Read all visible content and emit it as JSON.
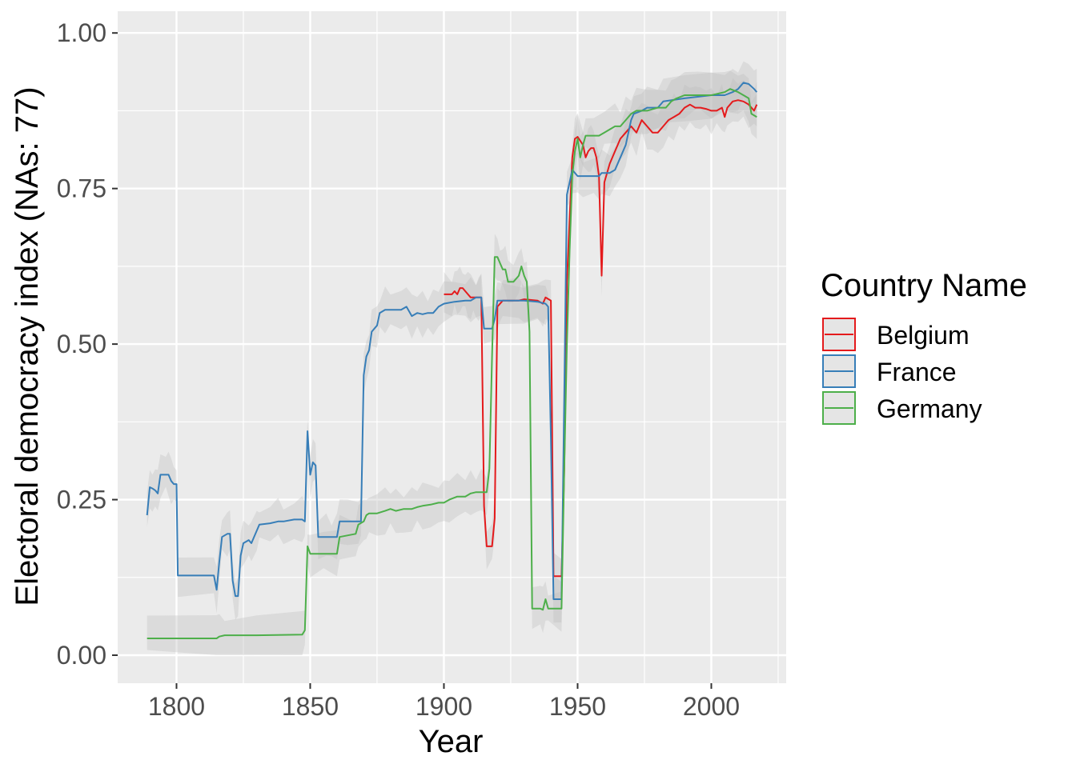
{
  "chart_data": {
    "type": "line",
    "title": "",
    "xlabel": "Year",
    "ylabel": "Electoral democracy index (NAs: 77)",
    "xlim": [
      1778,
      2028
    ],
    "ylim": [
      -0.045,
      1.035
    ],
    "x_ticks": [
      1800,
      1850,
      1900,
      1950,
      2000
    ],
    "x_tick_labels": [
      "1800",
      "1850",
      "1900",
      "1950",
      "2000"
    ],
    "y_ticks": [
      0,
      0.25,
      0.5,
      0.75,
      1
    ],
    "y_tick_labels": [
      "0.00",
      "0.25",
      "0.50",
      "0.75",
      "1.00"
    ],
    "grid": true,
    "confidence_band": true,
    "legend": {
      "title": "Country Name",
      "position": "right"
    },
    "series": [
      {
        "name": "Belgium",
        "color": "#E41A1C",
        "points": [
          [
            1900,
            0.58
          ],
          [
            1903,
            0.58
          ],
          [
            1904,
            0.585
          ],
          [
            1905,
            0.58
          ],
          [
            1906,
            0.59
          ],
          [
            1907,
            0.59
          ],
          [
            1908,
            0.585
          ],
          [
            1909,
            0.58
          ],
          [
            1910,
            0.575
          ],
          [
            1911,
            0.575
          ],
          [
            1912,
            0.575
          ],
          [
            1913,
            0.575
          ],
          [
            1914,
            0.575
          ],
          [
            1915,
            0.24
          ],
          [
            1916,
            0.175
          ],
          [
            1918,
            0.175
          ],
          [
            1919,
            0.22
          ],
          [
            1920,
            0.56
          ],
          [
            1921,
            0.565
          ],
          [
            1922,
            0.57
          ],
          [
            1928,
            0.57
          ],
          [
            1930,
            0.572
          ],
          [
            1935,
            0.57
          ],
          [
            1937,
            0.565
          ],
          [
            1938,
            0.575
          ],
          [
            1940,
            0.57
          ],
          [
            1941,
            0.127
          ],
          [
            1944,
            0.127
          ],
          [
            1945,
            0.3
          ],
          [
            1946,
            0.6
          ],
          [
            1948,
            0.8
          ],
          [
            1949,
            0.83
          ],
          [
            1950,
            0.833
          ],
          [
            1952,
            0.82
          ],
          [
            1953,
            0.8
          ],
          [
            1954,
            0.81
          ],
          [
            1955,
            0.815
          ],
          [
            1956,
            0.815
          ],
          [
            1957,
            0.8
          ],
          [
            1958,
            0.77
          ],
          [
            1959,
            0.61
          ],
          [
            1960,
            0.76
          ],
          [
            1962,
            0.79
          ],
          [
            1964,
            0.81
          ],
          [
            1966,
            0.83
          ],
          [
            1968,
            0.84
          ],
          [
            1970,
            0.85
          ],
          [
            1972,
            0.84
          ],
          [
            1974,
            0.86
          ],
          [
            1976,
            0.85
          ],
          [
            1978,
            0.84
          ],
          [
            1980,
            0.84
          ],
          [
            1982,
            0.85
          ],
          [
            1984,
            0.86
          ],
          [
            1986,
            0.865
          ],
          [
            1988,
            0.87
          ],
          [
            1990,
            0.88
          ],
          [
            1992,
            0.885
          ],
          [
            1994,
            0.88
          ],
          [
            1996,
            0.88
          ],
          [
            1998,
            0.878
          ],
          [
            2000,
            0.875
          ],
          [
            2002,
            0.875
          ],
          [
            2004,
            0.88
          ],
          [
            2005,
            0.865
          ],
          [
            2006,
            0.88
          ],
          [
            2008,
            0.89
          ],
          [
            2010,
            0.892
          ],
          [
            2012,
            0.89
          ],
          [
            2014,
            0.885
          ],
          [
            2016,
            0.875
          ],
          [
            2017,
            0.885
          ]
        ]
      },
      {
        "name": "France",
        "color": "#377EB8",
        "points": [
          [
            1789,
            0.225
          ],
          [
            1790,
            0.27
          ],
          [
            1791,
            0.268
          ],
          [
            1792,
            0.265
          ],
          [
            1793,
            0.26
          ],
          [
            1794,
            0.29
          ],
          [
            1796,
            0.29
          ],
          [
            1797,
            0.29
          ],
          [
            1798,
            0.28
          ],
          [
            1799,
            0.275
          ],
          [
            1800,
            0.275
          ],
          [
            1800.5,
            0.128
          ],
          [
            1814,
            0.128
          ],
          [
            1815,
            0.105
          ],
          [
            1816,
            0.15
          ],
          [
            1817,
            0.19
          ],
          [
            1819,
            0.195
          ],
          [
            1820,
            0.195
          ],
          [
            1821,
            0.12
          ],
          [
            1822,
            0.095
          ],
          [
            1823,
            0.095
          ],
          [
            1824,
            0.16
          ],
          [
            1825,
            0.18
          ],
          [
            1827,
            0.185
          ],
          [
            1828,
            0.18
          ],
          [
            1830,
            0.2
          ],
          [
            1831,
            0.21
          ],
          [
            1835,
            0.212
          ],
          [
            1838,
            0.215
          ],
          [
            1840,
            0.215
          ],
          [
            1844,
            0.218
          ],
          [
            1847,
            0.218
          ],
          [
            1848,
            0.215
          ],
          [
            1849,
            0.36
          ],
          [
            1850,
            0.29
          ],
          [
            1851,
            0.31
          ],
          [
            1852,
            0.305
          ],
          [
            1853,
            0.19
          ],
          [
            1856,
            0.19
          ],
          [
            1858,
            0.19
          ],
          [
            1860,
            0.19
          ],
          [
            1861,
            0.215
          ],
          [
            1864,
            0.215
          ],
          [
            1868,
            0.215
          ],
          [
            1869,
            0.215
          ],
          [
            1870,
            0.45
          ],
          [
            1871,
            0.48
          ],
          [
            1872,
            0.49
          ],
          [
            1873,
            0.52
          ],
          [
            1875,
            0.53
          ],
          [
            1876,
            0.55
          ],
          [
            1878,
            0.555
          ],
          [
            1880,
            0.555
          ],
          [
            1884,
            0.555
          ],
          [
            1886,
            0.56
          ],
          [
            1888,
            0.545
          ],
          [
            1890,
            0.55
          ],
          [
            1892,
            0.548
          ],
          [
            1894,
            0.55
          ],
          [
            1896,
            0.55
          ],
          [
            1898,
            0.56
          ],
          [
            1900,
            0.565
          ],
          [
            1904,
            0.568
          ],
          [
            1908,
            0.57
          ],
          [
            1910,
            0.57
          ],
          [
            1912,
            0.575
          ],
          [
            1914,
            0.575
          ],
          [
            1915,
            0.525
          ],
          [
            1918,
            0.525
          ],
          [
            1919,
            0.54
          ],
          [
            1920,
            0.57
          ],
          [
            1930,
            0.57
          ],
          [
            1935,
            0.568
          ],
          [
            1938,
            0.565
          ],
          [
            1939,
            0.56
          ],
          [
            1940,
            0.35
          ],
          [
            1941,
            0.09
          ],
          [
            1944,
            0.09
          ],
          [
            1946,
            0.74
          ],
          [
            1947,
            0.76
          ],
          [
            1948,
            0.78
          ],
          [
            1950,
            0.77
          ],
          [
            1952,
            0.77
          ],
          [
            1956,
            0.77
          ],
          [
            1958,
            0.77
          ],
          [
            1959,
            0.775
          ],
          [
            1962,
            0.775
          ],
          [
            1964,
            0.78
          ],
          [
            1966,
            0.8
          ],
          [
            1968,
            0.82
          ],
          [
            1970,
            0.86
          ],
          [
            1971,
            0.87
          ],
          [
            1974,
            0.875
          ],
          [
            1976,
            0.88
          ],
          [
            1980,
            0.88
          ],
          [
            1982,
            0.89
          ],
          [
            1990,
            0.895
          ],
          [
            2000,
            0.9
          ],
          [
            2005,
            0.9
          ],
          [
            2008,
            0.905
          ],
          [
            2010,
            0.91
          ],
          [
            2012,
            0.92
          ],
          [
            2014,
            0.918
          ],
          [
            2016,
            0.91
          ],
          [
            2017,
            0.905
          ]
        ]
      },
      {
        "name": "Germany",
        "color": "#4DAF4A",
        "points": [
          [
            1789,
            0.027
          ],
          [
            1815,
            0.027
          ],
          [
            1816,
            0.03
          ],
          [
            1818,
            0.032
          ],
          [
            1830,
            0.032
          ],
          [
            1847,
            0.033
          ],
          [
            1848,
            0.04
          ],
          [
            1849,
            0.175
          ],
          [
            1850,
            0.163
          ],
          [
            1855,
            0.163
          ],
          [
            1860,
            0.163
          ],
          [
            1861,
            0.19
          ],
          [
            1867,
            0.195
          ],
          [
            1868,
            0.21
          ],
          [
            1870,
            0.215
          ],
          [
            1871,
            0.225
          ],
          [
            1872,
            0.228
          ],
          [
            1875,
            0.228
          ],
          [
            1878,
            0.232
          ],
          [
            1880,
            0.235
          ],
          [
            1882,
            0.232
          ],
          [
            1885,
            0.235
          ],
          [
            1888,
            0.235
          ],
          [
            1890,
            0.238
          ],
          [
            1892,
            0.24
          ],
          [
            1895,
            0.242
          ],
          [
            1898,
            0.245
          ],
          [
            1900,
            0.245
          ],
          [
            1902,
            0.25
          ],
          [
            1905,
            0.255
          ],
          [
            1908,
            0.255
          ],
          [
            1910,
            0.26
          ],
          [
            1912,
            0.262
          ],
          [
            1914,
            0.262
          ],
          [
            1916,
            0.262
          ],
          [
            1917,
            0.3
          ],
          [
            1918,
            0.48
          ],
          [
            1919,
            0.64
          ],
          [
            1920,
            0.64
          ],
          [
            1921,
            0.63
          ],
          [
            1922,
            0.62
          ],
          [
            1923,
            0.62
          ],
          [
            1924,
            0.6
          ],
          [
            1926,
            0.6
          ],
          [
            1928,
            0.61
          ],
          [
            1929,
            0.625
          ],
          [
            1930,
            0.61
          ],
          [
            1931,
            0.6
          ],
          [
            1932,
            0.52
          ],
          [
            1933,
            0.075
          ],
          [
            1936,
            0.075
          ],
          [
            1937,
            0.073
          ],
          [
            1938,
            0.09
          ],
          [
            1939,
            0.075
          ],
          [
            1944,
            0.075
          ],
          [
            1945,
            0.3
          ],
          [
            1946,
            0.5
          ],
          [
            1947,
            0.65
          ],
          [
            1948,
            0.77
          ],
          [
            1949,
            0.81
          ],
          [
            1950,
            0.83
          ],
          [
            1951,
            0.8
          ],
          [
            1952,
            0.82
          ],
          [
            1953,
            0.835
          ],
          [
            1956,
            0.835
          ],
          [
            1958,
            0.835
          ],
          [
            1960,
            0.84
          ],
          [
            1964,
            0.85
          ],
          [
            1966,
            0.85
          ],
          [
            1968,
            0.86
          ],
          [
            1970,
            0.87
          ],
          [
            1972,
            0.875
          ],
          [
            1976,
            0.875
          ],
          [
            1980,
            0.88
          ],
          [
            1983,
            0.88
          ],
          [
            1985,
            0.89
          ],
          [
            1987,
            0.895
          ],
          [
            1990,
            0.9
          ],
          [
            1995,
            0.9
          ],
          [
            2000,
            0.9
          ],
          [
            2005,
            0.905
          ],
          [
            2007,
            0.91
          ],
          [
            2010,
            0.905
          ],
          [
            2012,
            0.9
          ],
          [
            2014,
            0.895
          ],
          [
            2015,
            0.87
          ],
          [
            2017,
            0.865
          ]
        ]
      }
    ]
  }
}
